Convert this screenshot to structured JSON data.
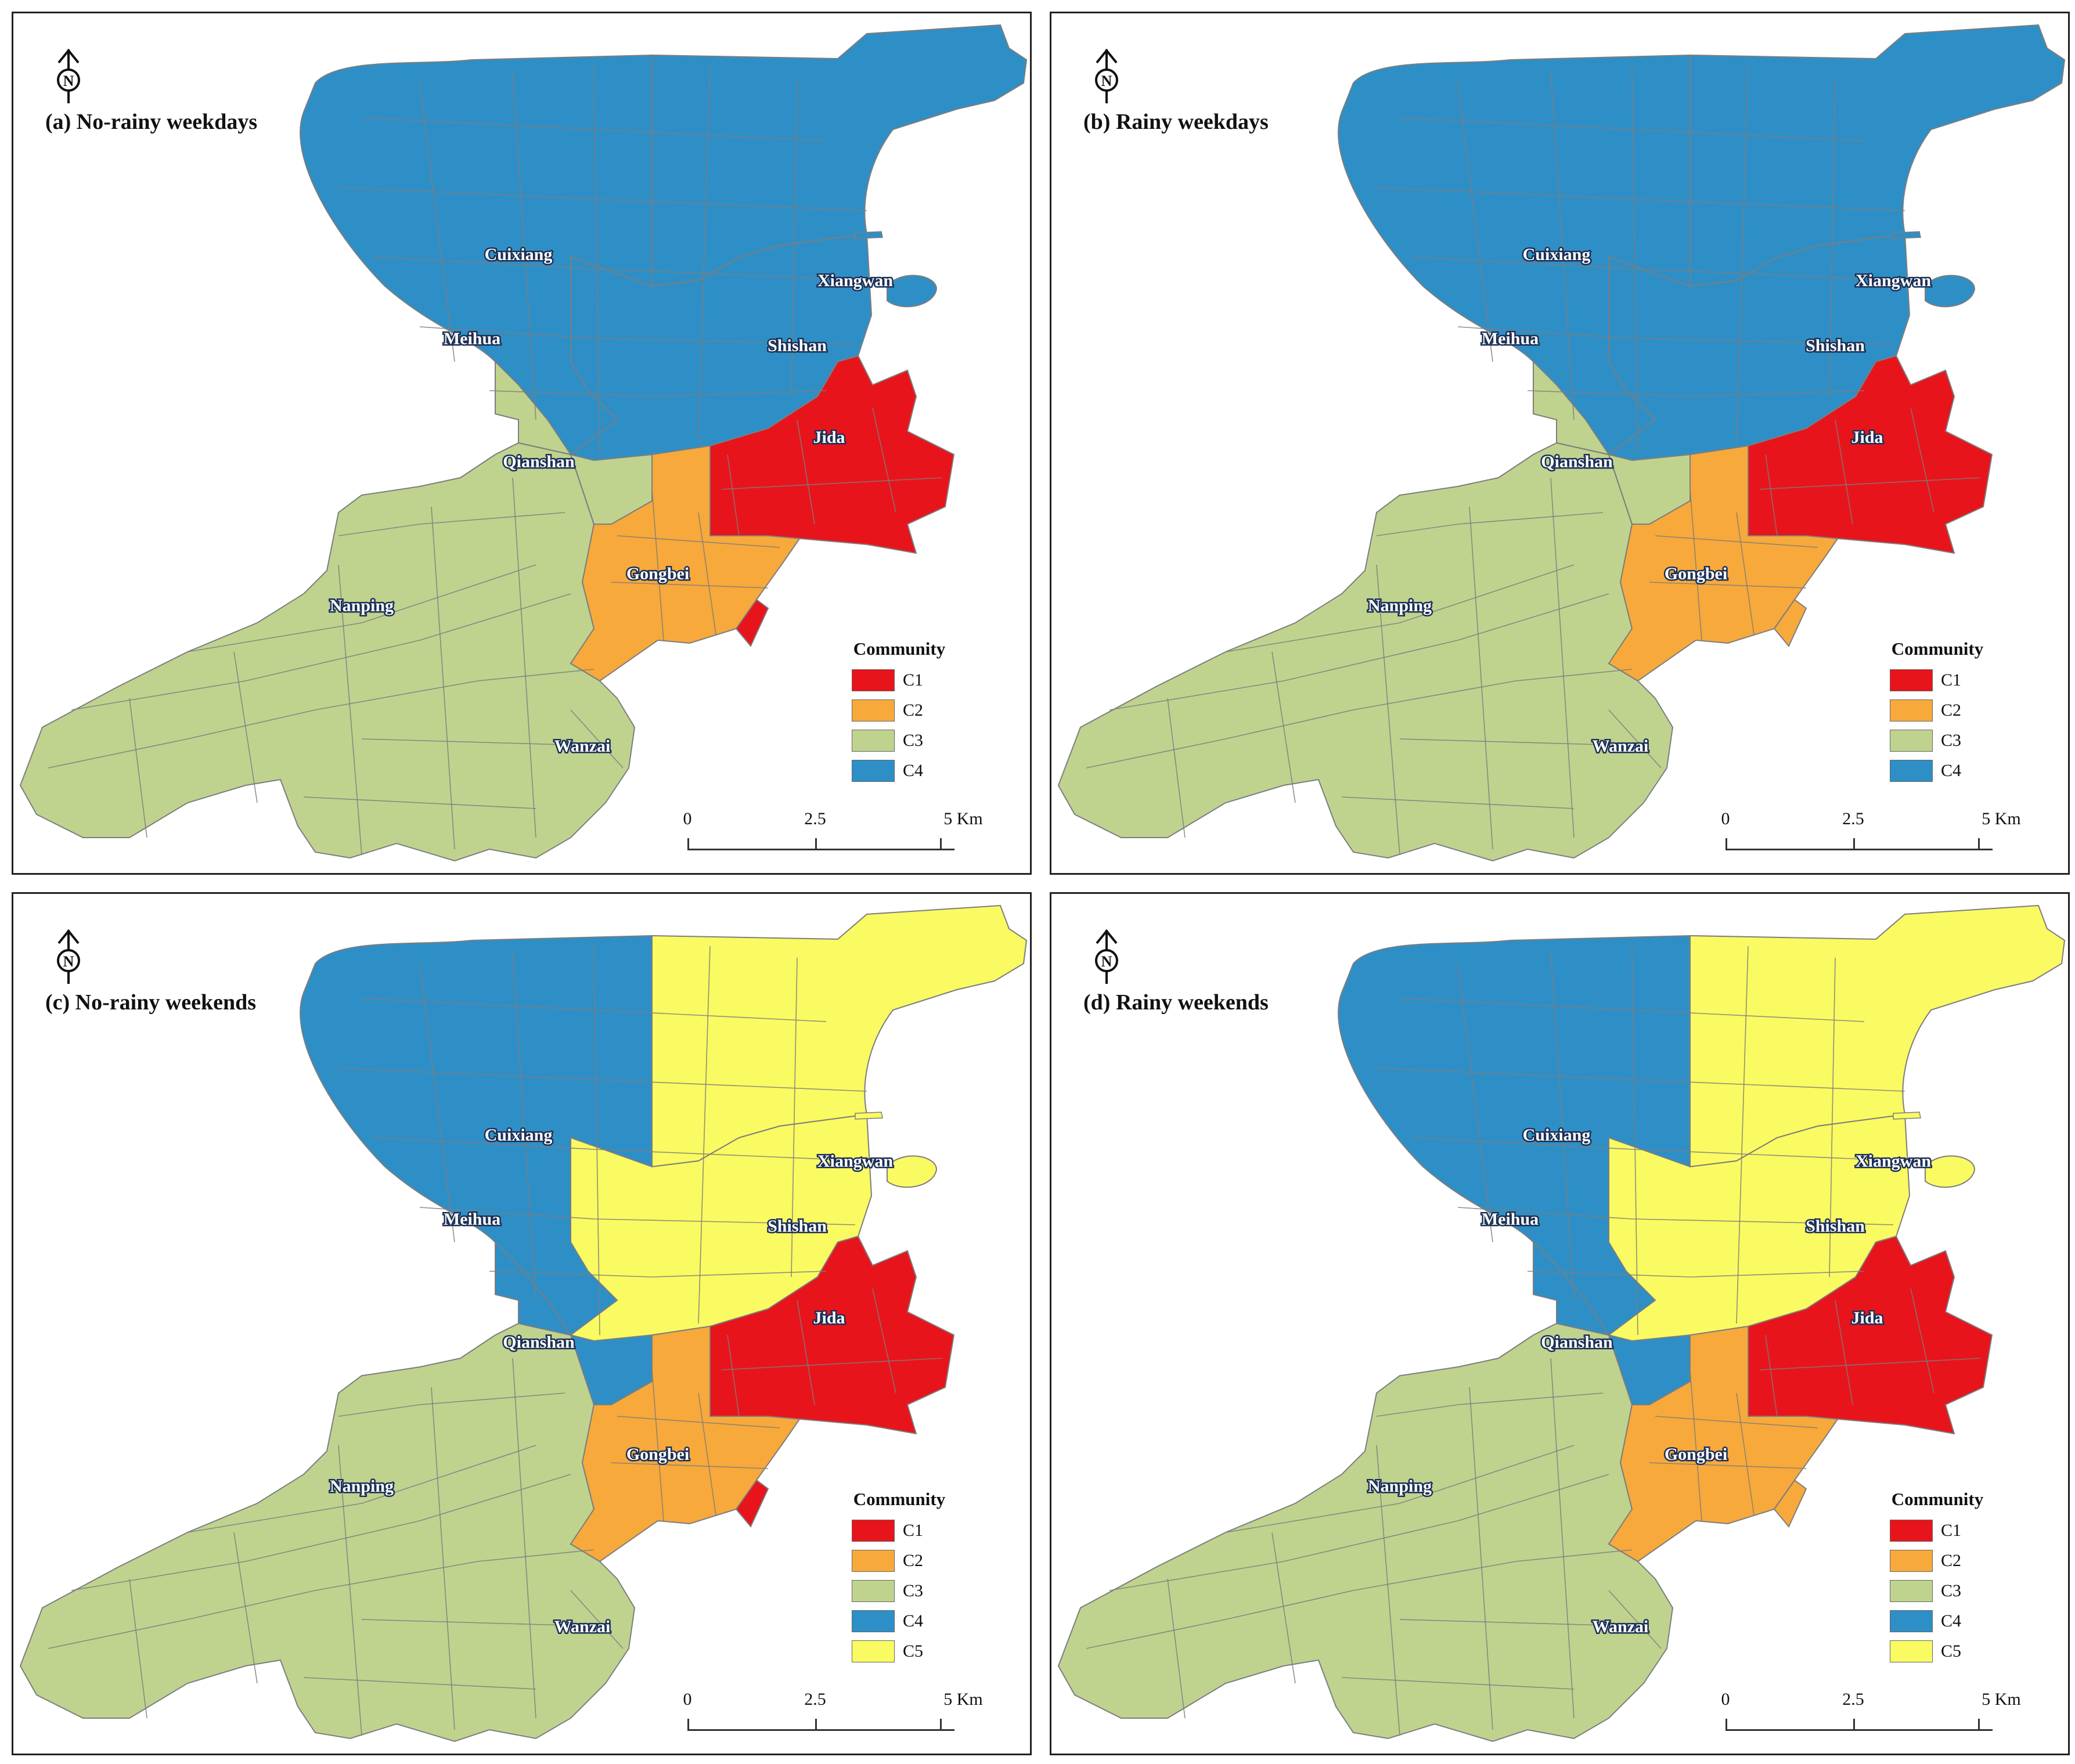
{
  "colors": {
    "C1": "#e8141b",
    "C2": "#f7a93b",
    "C3": "#bfd38f",
    "C4": "#2e8fc7",
    "C5": "#fafa62",
    "boundary": "#7d7d7d"
  },
  "legend_title": "Community",
  "scale_bar": {
    "labels": [
      "0",
      "2.5",
      "5 Km"
    ]
  },
  "north_arrow_letter": "N",
  "districts": [
    "Cuixiang",
    "Xiangwan",
    "Meihua",
    "Shishan",
    "Jida",
    "Qianshan",
    "Gongbei",
    "Nanping",
    "Wanzai"
  ],
  "panels": [
    {
      "title": "(a) No-rainy weekdays",
      "legend": [
        "C1",
        "C2",
        "C3",
        "C4"
      ],
      "assignment": {
        "north": "C4",
        "northeast": "C4",
        "northwest": "C4",
        "qianshan": "C3",
        "jida": "C1",
        "gongbei": "C2",
        "south": "C3",
        "coast": "C1"
      }
    },
    {
      "title": "(b) Rainy weekdays",
      "legend": [
        "C1",
        "C2",
        "C3",
        "C4"
      ],
      "assignment": {
        "north": "C4",
        "northeast": "C4",
        "northwest": "C4",
        "qianshan": "C3",
        "jida": "C1",
        "gongbei": "C2",
        "south": "C3",
        "coast": "C2"
      }
    },
    {
      "title": "(c) No-rainy weekends",
      "legend": [
        "C1",
        "C2",
        "C3",
        "C4",
        "C5"
      ],
      "assignment": {
        "north": "C5",
        "northeast": "C5",
        "northwest": "C4",
        "qianshan": "C4",
        "jida": "C1",
        "gongbei": "C2",
        "south": "C3",
        "coast": "C1"
      }
    },
    {
      "title": "(d) Rainy weekends",
      "legend": [
        "C1",
        "C2",
        "C3",
        "C4",
        "C5"
      ],
      "assignment": {
        "north": "C5",
        "northeast": "C5",
        "northwest": "C4",
        "qianshan": "C4",
        "jida": "C1",
        "gongbei": "C2",
        "south": "C3",
        "coast": "C2"
      }
    }
  ]
}
